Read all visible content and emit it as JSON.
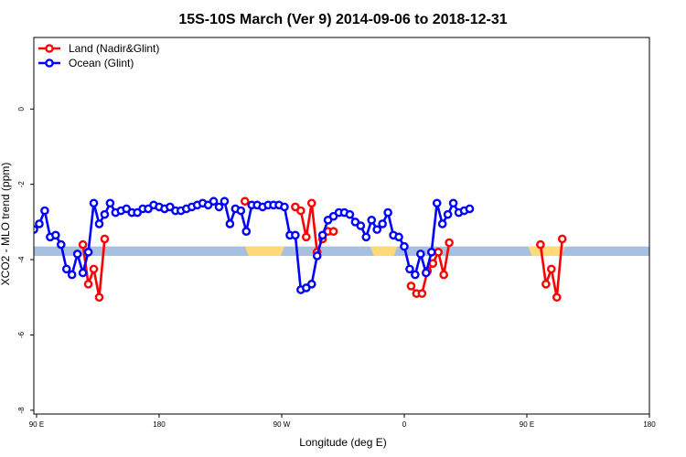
{
  "chart_data": {
    "type": "line",
    "title": "15S-10S March (Ver 9)   2014-09-06 to 2018-12-31",
    "xlabel": "Longitude (deg E)",
    "ylabel": "XCO2 - MLO trend (ppm)",
    "xlim": [
      90,
      450
    ],
    "ylim": [
      -8.1,
      1.9
    ],
    "xticks": [
      90,
      180,
      270,
      360,
      450
    ],
    "xtick_labels": [
      "90 E",
      "180",
      "90 W",
      "0",
      "90 E",
      "180"
    ],
    "xtick_values": [
      90,
      180,
      270,
      360,
      450,
      540
    ],
    "yticks": [
      0,
      -2,
      -4,
      -6,
      -8
    ],
    "ytick_labels": [
      "0",
      "-2",
      "-4",
      "-6",
      "-8"
    ],
    "legend_position": "top-left",
    "colors": {
      "land": "#ff0000",
      "ocean": "#0000ff",
      "band_ocean": "#a7c0e0",
      "band_land": "#ffd878"
    },
    "reference_band": {
      "y_low": -3.9,
      "y_high": -3.65
    },
    "land_segments": [
      [
        243,
        272
      ],
      [
        335,
        355
      ],
      [
        451,
        478
      ]
    ],
    "series": [
      {
        "name": "Land (Nadir&Glint)",
        "key": "land",
        "segments": [
          [
            [
              124,
              -3.6
            ],
            [
              128,
              -4.65
            ],
            [
              132,
              -4.25
            ],
            [
              136,
              -5.0
            ],
            [
              140,
              -3.45
            ]
          ],
          [
            [
              243,
              -2.45
            ]
          ],
          [
            [
              280,
              -2.6
            ],
            [
              284,
              -2.7
            ],
            [
              288,
              -3.4
            ],
            [
              292,
              -2.5
            ],
            [
              296,
              -3.8
            ],
            [
              300,
              -3.45
            ],
            [
              304,
              -3.25
            ],
            [
              308,
              -3.25
            ]
          ],
          [
            [
              365,
              -4.7
            ],
            [
              369,
              -4.9
            ],
            [
              373,
              -4.9
            ],
            [
              377,
              -4.3
            ],
            [
              381,
              -4.1
            ],
            [
              385,
              -3.8
            ],
            [
              389,
              -4.4
            ],
            [
              393,
              -3.55
            ]
          ],
          [
            [
              460,
              -3.6
            ],
            [
              464,
              -4.65
            ],
            [
              468,
              -4.25
            ],
            [
              472,
              -5.0
            ],
            [
              476,
              -3.45
            ]
          ]
        ]
      },
      {
        "name": "Ocean (Glint)",
        "key": "ocean",
        "points": [
          [
            88,
            -3.2
          ],
          [
            92,
            -3.05
          ],
          [
            96,
            -2.7
          ],
          [
            100,
            -3.4
          ],
          [
            104,
            -3.35
          ],
          [
            108,
            -3.6
          ],
          [
            112,
            -4.25
          ],
          [
            116,
            -4.4
          ],
          [
            120,
            -3.85
          ],
          [
            124,
            -4.35
          ],
          [
            128,
            -3.8
          ],
          [
            132,
            -2.5
          ],
          [
            136,
            -3.05
          ],
          [
            140,
            -2.8
          ],
          [
            144,
            -2.5
          ],
          [
            148,
            -2.75
          ],
          [
            152,
            -2.7
          ],
          [
            156,
            -2.65
          ],
          [
            160,
            -2.75
          ],
          [
            164,
            -2.75
          ],
          [
            168,
            -2.65
          ],
          [
            172,
            -2.65
          ],
          [
            176,
            -2.55
          ],
          [
            180,
            -2.6
          ],
          [
            184,
            -2.65
          ],
          [
            188,
            -2.6
          ],
          [
            192,
            -2.7
          ],
          [
            196,
            -2.7
          ],
          [
            200,
            -2.65
          ],
          [
            204,
            -2.6
          ],
          [
            208,
            -2.55
          ],
          [
            212,
            -2.5
          ],
          [
            216,
            -2.55
          ],
          [
            220,
            -2.45
          ],
          [
            224,
            -2.6
          ],
          [
            228,
            -2.45
          ],
          [
            232,
            -3.05
          ],
          [
            236,
            -2.65
          ],
          [
            240,
            -2.7
          ],
          [
            244,
            -3.25
          ],
          [
            248,
            -2.55
          ],
          [
            252,
            -2.55
          ],
          [
            256,
            -2.6
          ],
          [
            260,
            -2.55
          ],
          [
            264,
            -2.55
          ],
          [
            268,
            -2.55
          ],
          [
            272,
            -2.6
          ],
          [
            276,
            -3.35
          ],
          [
            280,
            -3.35
          ],
          [
            284,
            -4.8
          ],
          [
            288,
            -4.75
          ],
          [
            292,
            -4.65
          ],
          [
            296,
            -3.9
          ],
          [
            300,
            -3.35
          ],
          [
            304,
            -2.95
          ],
          [
            308,
            -2.85
          ],
          [
            312,
            -2.75
          ],
          [
            316,
            -2.75
          ],
          [
            320,
            -2.8
          ],
          [
            324,
            -3.0
          ],
          [
            328,
            -3.1
          ],
          [
            332,
            -3.4
          ],
          [
            336,
            -2.95
          ],
          [
            340,
            -3.2
          ],
          [
            344,
            -3.05
          ],
          [
            348,
            -2.75
          ],
          [
            352,
            -3.35
          ],
          [
            356,
            -3.4
          ],
          [
            360,
            -3.65
          ],
          [
            364,
            -4.25
          ],
          [
            368,
            -4.4
          ],
          [
            372,
            -3.85
          ],
          [
            376,
            -4.35
          ],
          [
            380,
            -3.8
          ],
          [
            384,
            -2.5
          ],
          [
            388,
            -3.05
          ],
          [
            392,
            -2.8
          ],
          [
            396,
            -2.5
          ],
          [
            400,
            -2.75
          ],
          [
            404,
            -2.7
          ],
          [
            408,
            -2.65
          ]
        ]
      }
    ]
  }
}
